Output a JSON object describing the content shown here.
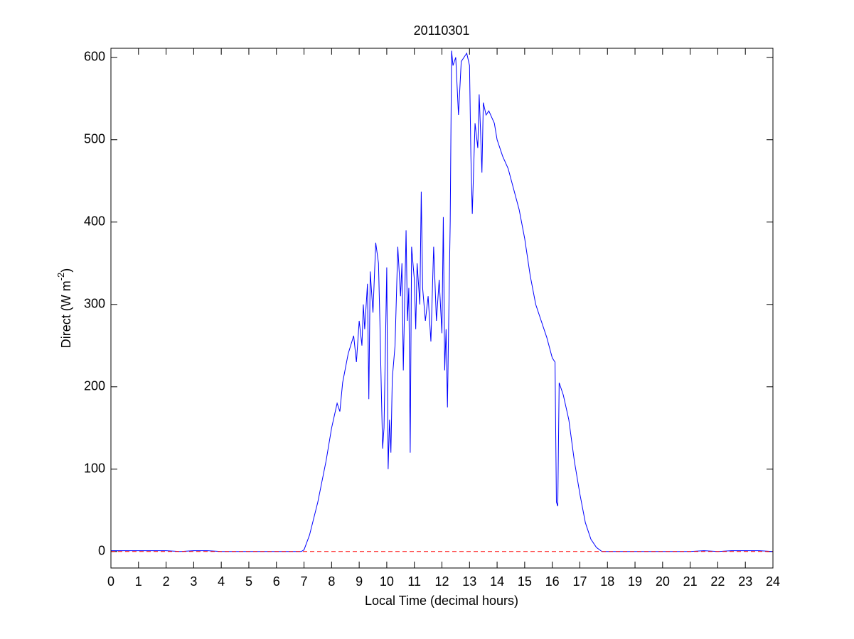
{
  "chart_data": {
    "type": "line",
    "title": "20110301",
    "x_label": "Local Time (decimal hours)",
    "y_label": [
      "Direct (W m",
      "-2",
      ")"
    ],
    "xlim": [
      0,
      24
    ],
    "ylim": [
      -20,
      611
    ],
    "xticks": [
      0,
      1,
      2,
      3,
      4,
      5,
      6,
      7,
      8,
      9,
      10,
      11,
      12,
      13,
      14,
      15,
      16,
      17,
      18,
      19,
      20,
      21,
      22,
      23,
      24
    ],
    "yticks": [
      0,
      100,
      200,
      300,
      400,
      500,
      600
    ],
    "series": [
      {
        "color": "#0000ff",
        "style": "solid",
        "x": [
          0,
          0.5,
          1,
          1.5,
          2,
          2.5,
          3,
          3.5,
          4,
          5,
          6,
          6.9,
          7.0,
          7.2,
          7.5,
          7.8,
          8.0,
          8.2,
          8.3,
          8.4,
          8.6,
          8.8,
          8.9,
          9.0,
          9.1,
          9.15,
          9.2,
          9.3,
          9.35,
          9.4,
          9.5,
          9.6,
          9.7,
          9.75,
          9.8,
          9.85,
          9.9,
          10.0,
          10.05,
          10.1,
          10.15,
          10.2,
          10.3,
          10.4,
          10.5,
          10.55,
          10.6,
          10.7,
          10.75,
          10.8,
          10.85,
          10.9,
          11.0,
          11.05,
          11.1,
          11.2,
          11.25,
          11.3,
          11.4,
          11.5,
          11.6,
          11.7,
          11.8,
          11.9,
          12.0,
          12.05,
          12.1,
          12.15,
          12.2,
          12.25,
          12.3,
          12.35,
          12.4,
          12.5,
          12.6,
          12.7,
          12.8,
          12.9,
          13.0,
          13.05,
          13.1,
          13.2,
          13.3,
          13.35,
          13.4,
          13.45,
          13.5,
          13.6,
          13.7,
          13.9,
          14.0,
          14.2,
          14.4,
          14.6,
          14.8,
          15.0,
          15.2,
          15.4,
          15.6,
          15.8,
          16.0,
          16.1,
          16.15,
          16.2,
          16.25,
          16.4,
          16.6,
          16.8,
          17.0,
          17.2,
          17.4,
          17.6,
          17.8,
          18,
          19,
          20,
          21,
          21.5,
          22,
          22.5,
          23,
          23.5,
          24
        ],
        "values": [
          1,
          1,
          1,
          1,
          1,
          0,
          1,
          1,
          0,
          0,
          0,
          0,
          2,
          20,
          60,
          110,
          150,
          180,
          170,
          205,
          240,
          262,
          230,
          280,
          250,
          300,
          270,
          325,
          185,
          340,
          290,
          375,
          350,
          280,
          200,
          125,
          150,
          345,
          100,
          160,
          120,
          210,
          250,
          370,
          310,
          350,
          220,
          390,
          280,
          320,
          120,
          370,
          330,
          270,
          350,
          300,
          437,
          320,
          280,
          310,
          255,
          370,
          280,
          330,
          265,
          406,
          220,
          270,
          175,
          290,
          400,
          608,
          590,
          600,
          530,
          595,
          600,
          605,
          590,
          480,
          410,
          520,
          490,
          555,
          510,
          460,
          545,
          530,
          535,
          520,
          500,
          480,
          465,
          440,
          415,
          380,
          335,
          300,
          280,
          260,
          235,
          230,
          60,
          55,
          205,
          190,
          160,
          110,
          70,
          35,
          15,
          5,
          0,
          0,
          0,
          0,
          0,
          1,
          0,
          1,
          1,
          1,
          0
        ]
      },
      {
        "color": "#ff0000",
        "style": "dashed",
        "x": [
          0,
          24
        ],
        "values": [
          0,
          0
        ]
      }
    ]
  }
}
